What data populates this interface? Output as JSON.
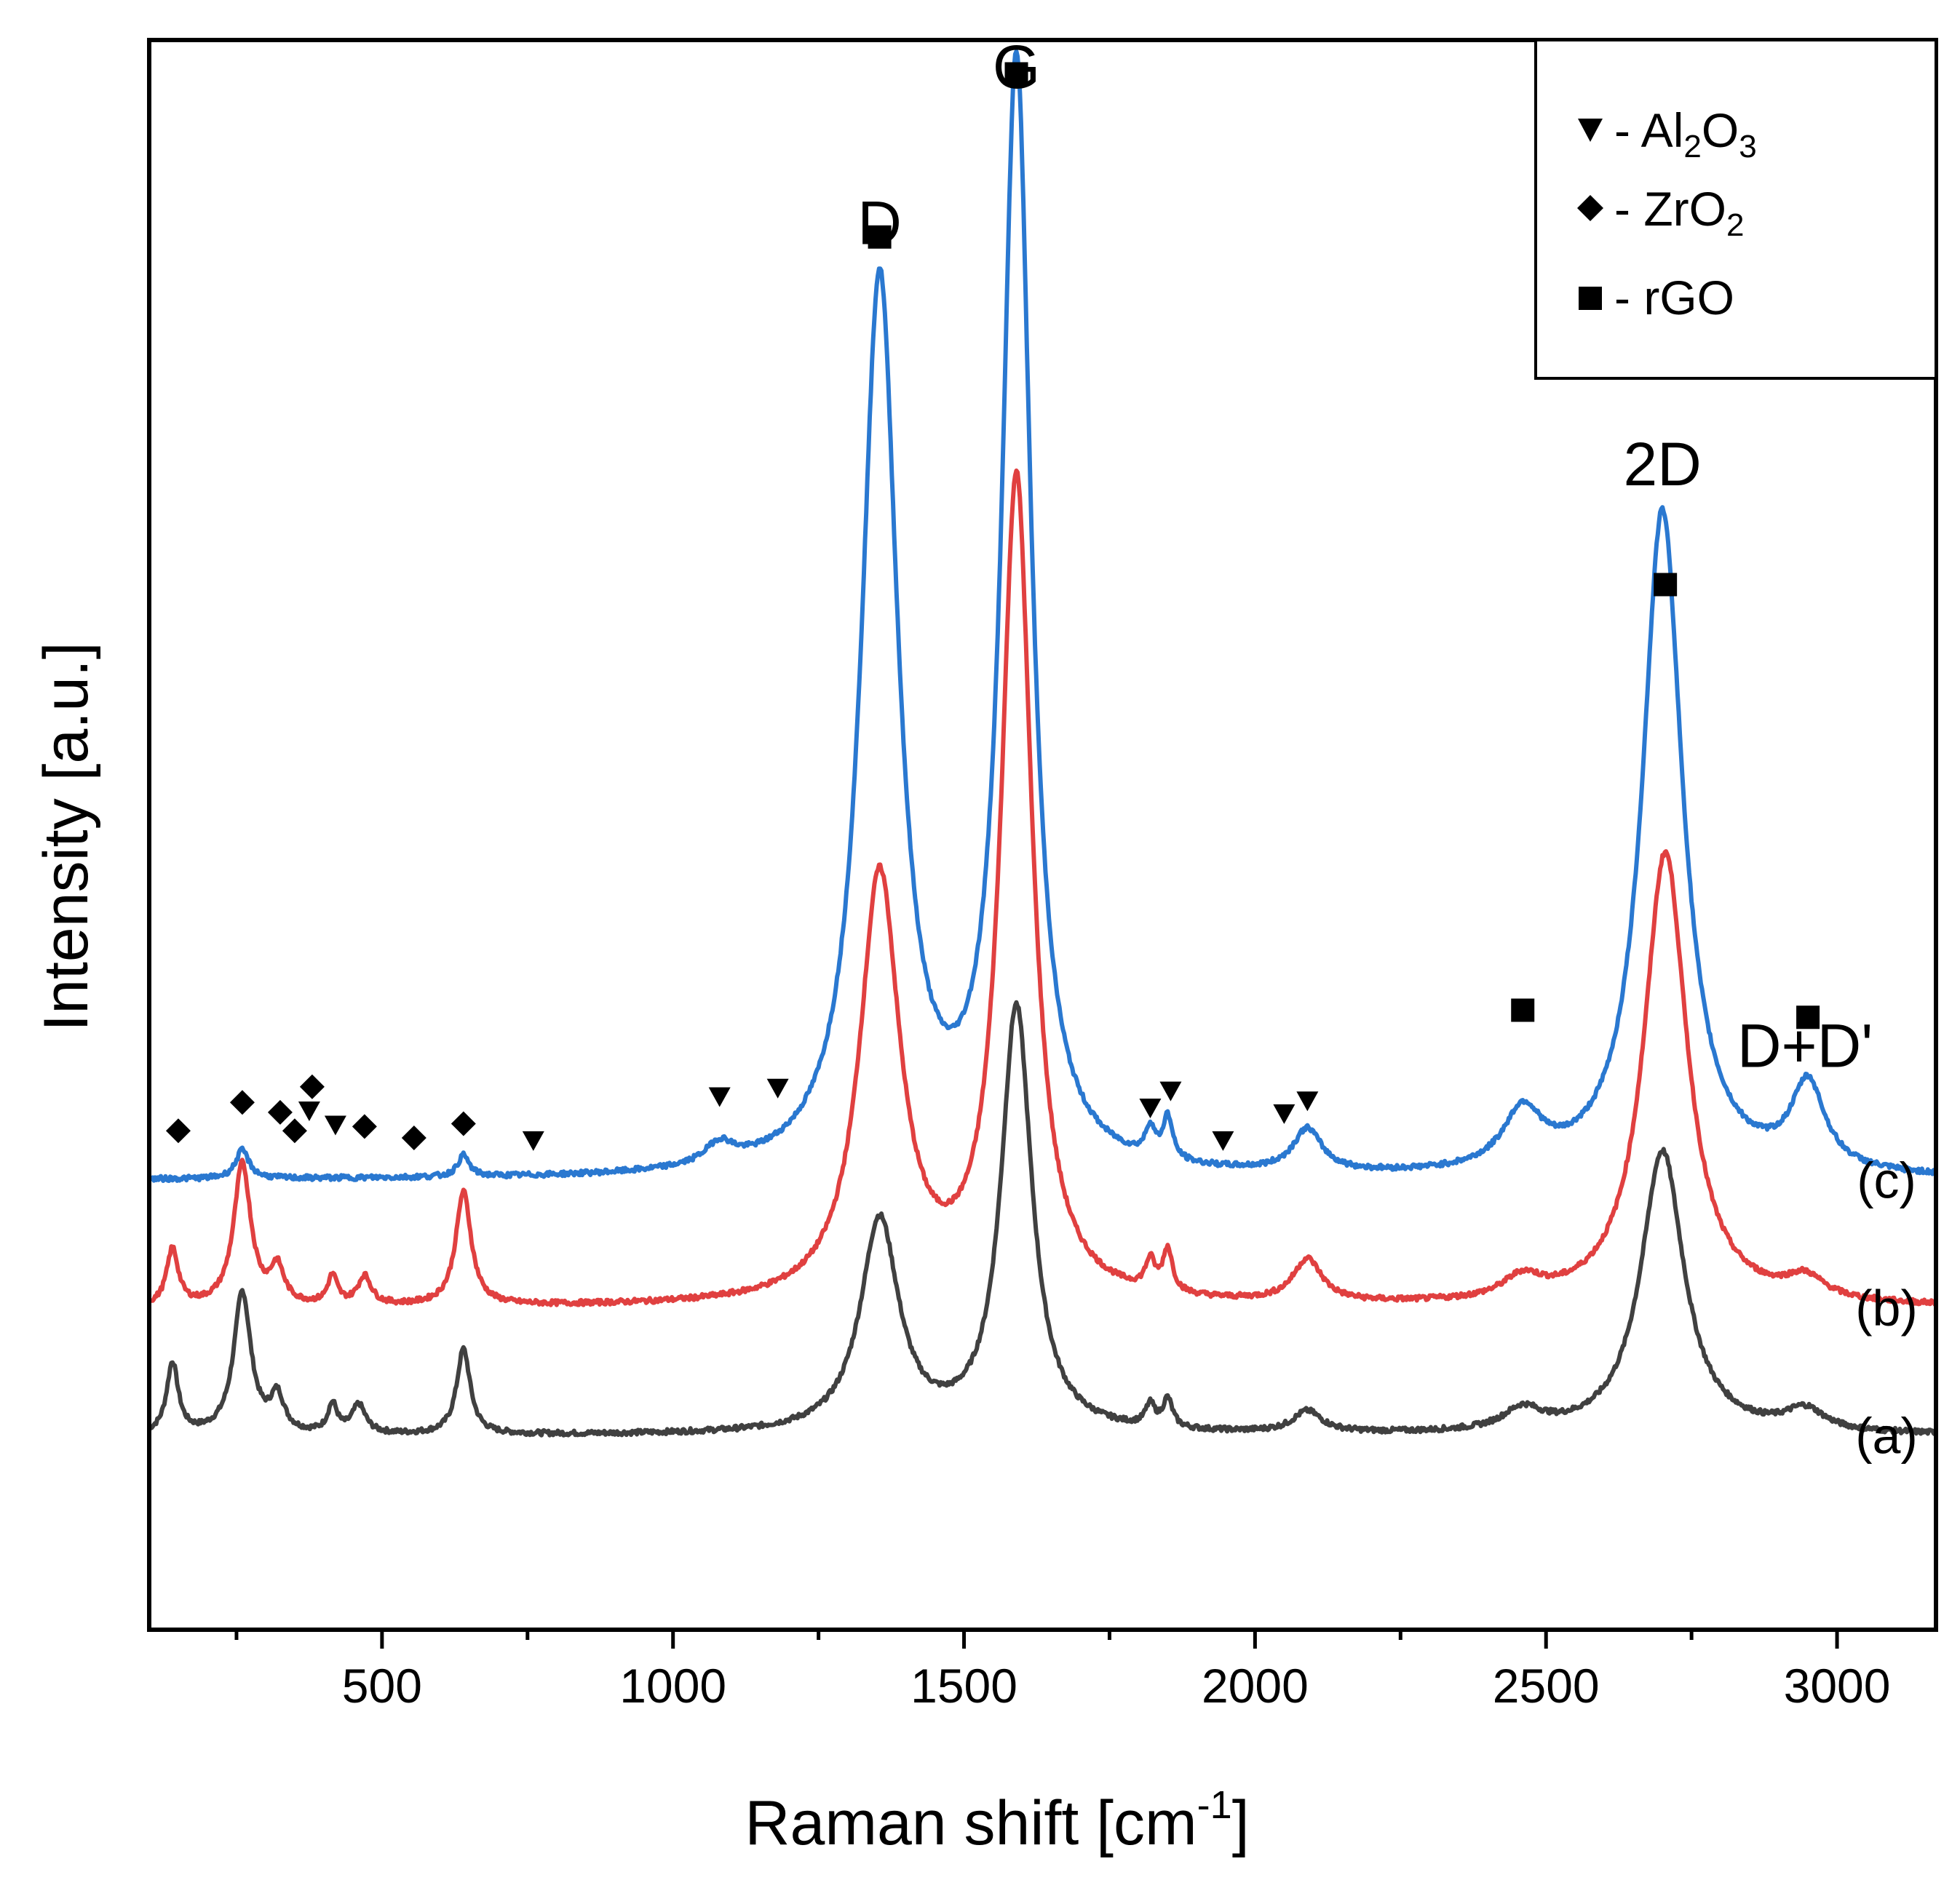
{
  "chart_data": {
    "type": "line",
    "title": "",
    "xlabel": "Raman shift [cm",
    "xlabel_sup": "-1",
    "xlabel_end": "]",
    "ylabel": "Intensity [a.u.]",
    "xlim": [
      100,
      3170
    ],
    "ylim": [
      0,
      100
    ],
    "x_ticks": [
      500,
      1000,
      1500,
      2000,
      2500,
      3000
    ],
    "x_tick_labels": [
      "500",
      "1000",
      "1500",
      "2000",
      "2500",
      "3000"
    ],
    "y_ticks_shown": false,
    "series": [
      {
        "name": "(a)",
        "color": "#404040",
        "baseline": 7,
        "peaks": [
          {
            "x": 140,
            "h": 5,
            "w": 12
          },
          {
            "x": 260,
            "h": 10,
            "w": 18
          },
          {
            "x": 320,
            "h": 2.5,
            "w": 14
          },
          {
            "x": 415,
            "h": 2,
            "w": 10
          },
          {
            "x": 460,
            "h": 2,
            "w": 14
          },
          {
            "x": 640,
            "h": 6,
            "w": 14
          },
          {
            "x": 1355,
            "h": 15,
            "w": 40
          },
          {
            "x": 1590,
            "h": 30,
            "w": 32
          },
          {
            "x": 1820,
            "h": 1.5,
            "w": 10
          },
          {
            "x": 1850,
            "h": 2,
            "w": 10
          },
          {
            "x": 2090,
            "h": 1.5,
            "w": 30
          },
          {
            "x": 2460,
            "h": 1.5,
            "w": 40
          },
          {
            "x": 2700,
            "h": 20,
            "w": 45
          },
          {
            "x": 2945,
            "h": 1.5,
            "w": 40
          }
        ]
      },
      {
        "name": "(b)",
        "color": "#e04040",
        "baseline": 16,
        "peaks": [
          {
            "x": 140,
            "h": 4,
            "w": 12
          },
          {
            "x": 260,
            "h": 10,
            "w": 18
          },
          {
            "x": 320,
            "h": 2.5,
            "w": 14
          },
          {
            "x": 415,
            "h": 2,
            "w": 10
          },
          {
            "x": 470,
            "h": 2,
            "w": 14
          },
          {
            "x": 640,
            "h": 8,
            "w": 16
          },
          {
            "x": 1355,
            "h": 30,
            "w": 42
          },
          {
            "x": 1590,
            "h": 58,
            "w": 32
          },
          {
            "x": 1820,
            "h": 2,
            "w": 10
          },
          {
            "x": 1850,
            "h": 3,
            "w": 10
          },
          {
            "x": 2090,
            "h": 3,
            "w": 30
          },
          {
            "x": 2460,
            "h": 1.5,
            "w": 40
          },
          {
            "x": 2705,
            "h": 32,
            "w": 45
          },
          {
            "x": 2945,
            "h": 1.5,
            "w": 40
          }
        ]
      },
      {
        "name": "(c)",
        "color": "#2a78d0",
        "baseline": 25,
        "peaks": [
          {
            "x": 260,
            "h": 2,
            "w": 14
          },
          {
            "x": 640,
            "h": 1.5,
            "w": 12
          },
          {
            "x": 1080,
            "h": 1.5,
            "w": 30
          },
          {
            "x": 1355,
            "h": 63,
            "w": 38
          },
          {
            "x": 1590,
            "h": 78,
            "w": 30
          },
          {
            "x": 1820,
            "h": 2,
            "w": 10
          },
          {
            "x": 1850,
            "h": 3,
            "w": 10
          },
          {
            "x": 2090,
            "h": 3,
            "w": 30
          },
          {
            "x": 2460,
            "h": 4,
            "w": 40
          },
          {
            "x": 2700,
            "h": 47,
            "w": 42
          },
          {
            "x": 2950,
            "h": 6,
            "w": 35
          }
        ]
      }
    ],
    "peak_labels": [
      {
        "text": "D",
        "x": 1355,
        "y": 91
      },
      {
        "text": "G",
        "x": 1590,
        "y": 102
      },
      {
        "text": "2D",
        "x": 2700,
        "y": 74
      },
      {
        "text": "D+D'",
        "x": 2945,
        "y": 33
      }
    ],
    "curve_labels": [
      {
        "text": "(c)",
        "x": 3085,
        "y": 25
      },
      {
        "text": "(b)",
        "x": 3085,
        "y": 16
      },
      {
        "text": "(a)",
        "x": 3085,
        "y": 7
      }
    ],
    "markers": [
      {
        "kind": "square",
        "x": 1355,
        "y": 91.5
      },
      {
        "kind": "square",
        "x": 1590,
        "y": 103
      },
      {
        "kind": "square",
        "x": 2460,
        "y": 37
      },
      {
        "kind": "square",
        "x": 2705,
        "y": 67
      },
      {
        "kind": "square",
        "x": 2950,
        "y": 36.5
      },
      {
        "kind": "diamond",
        "x": 150,
        "y": 28.5
      },
      {
        "kind": "diamond",
        "x": 260,
        "y": 30.5
      },
      {
        "kind": "diamond",
        "x": 325,
        "y": 29.8
      },
      {
        "kind": "diamond",
        "x": 350,
        "y": 28.5
      },
      {
        "kind": "diamond",
        "x": 380,
        "y": 31.6
      },
      {
        "kind": "diamond",
        "x": 470,
        "y": 28.8
      },
      {
        "kind": "diamond",
        "x": 555,
        "y": 28
      },
      {
        "kind": "diamond",
        "x": 640,
        "y": 29
      },
      {
        "kind": "triangle",
        "x": 375,
        "y": 29.9
      },
      {
        "kind": "triangle",
        "x": 420,
        "y": 28.9
      },
      {
        "kind": "triangle",
        "x": 760,
        "y": 27.8
      },
      {
        "kind": "triangle",
        "x": 1080,
        "y": 30.9
      },
      {
        "kind": "triangle",
        "x": 1180,
        "y": 31.5
      },
      {
        "kind": "triangle",
        "x": 1820,
        "y": 30.1
      },
      {
        "kind": "triangle",
        "x": 1855,
        "y": 31.3
      },
      {
        "kind": "triangle",
        "x": 1945,
        "y": 27.8
      },
      {
        "kind": "triangle",
        "x": 2050,
        "y": 29.7
      },
      {
        "kind": "triangle",
        "x": 2090,
        "y": 30.6
      }
    ],
    "legend": {
      "position": "top-right",
      "entries": [
        {
          "marker": "triangle",
          "prefix": "- Al",
          "sub1": "2",
          "mid": "O",
          "sub2": "3"
        },
        {
          "marker": "diamond",
          "prefix": "- ZrO",
          "sub1": "2",
          "mid": "",
          "sub2": ""
        },
        {
          "marker": "square",
          "prefix": "- rGO",
          "sub1": "",
          "mid": "",
          "sub2": ""
        }
      ]
    }
  }
}
